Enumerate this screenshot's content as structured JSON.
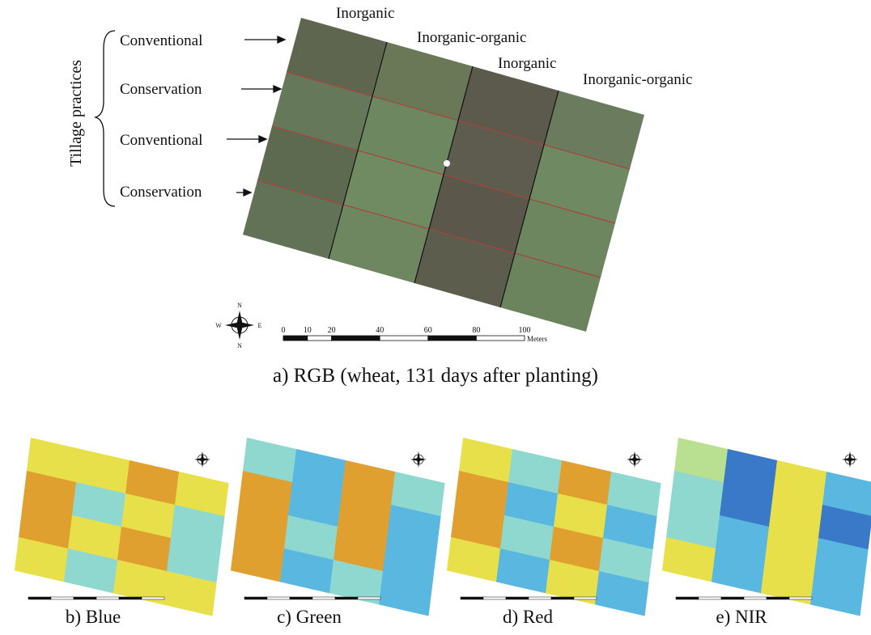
{
  "panel_a": {
    "axis_label": "Tillage practices",
    "rows": [
      "Conventional",
      "Conservation",
      "Conventional",
      "Conservation"
    ],
    "columns": [
      "Inorganic",
      "Inorganic-organic",
      "Inorganic",
      "Inorganic-organic"
    ],
    "scale_bar": {
      "ticks": [
        0,
        10,
        20,
        40,
        60,
        80,
        100
      ],
      "unit": "Meters"
    },
    "compass": {
      "north": "N",
      "west": "W",
      "east": "E",
      "south": "N"
    },
    "caption": "a) RGB (wheat, 131 days after planting)"
  },
  "bands": [
    {
      "caption": "b) Blue"
    },
    {
      "caption": "c) Green"
    },
    {
      "caption": "d) Red"
    },
    {
      "caption": "e) NIR"
    }
  ]
}
